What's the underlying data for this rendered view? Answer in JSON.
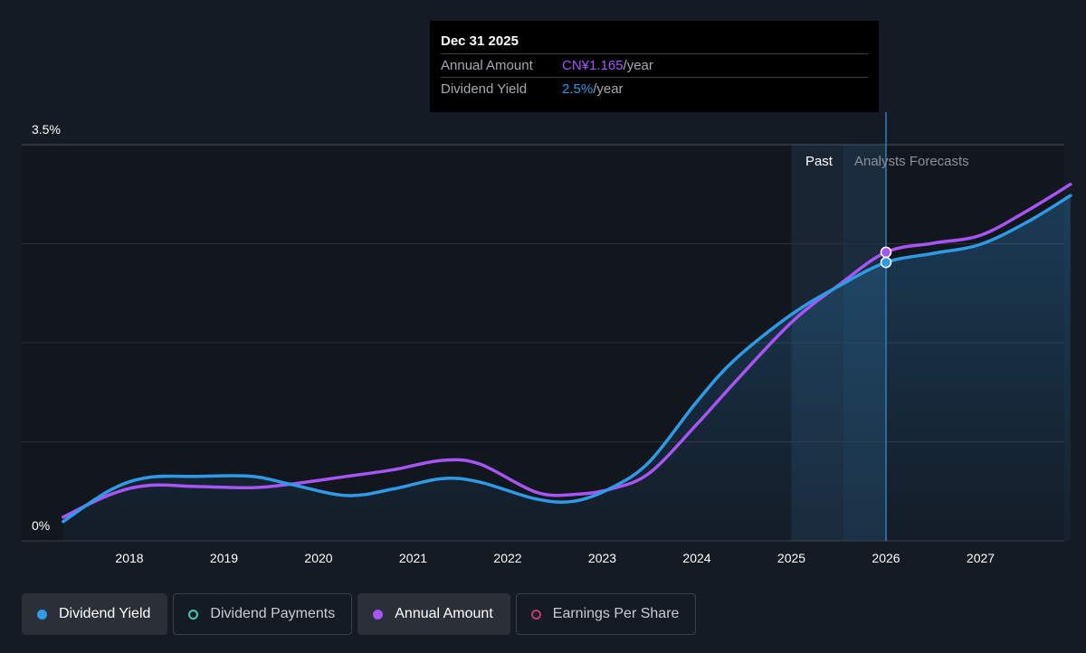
{
  "colors": {
    "dividend_yield": "#2f9ae6",
    "annual_amount": "#a855f7",
    "dividend_payments": "#3ec9b0",
    "earnings_per_share": "#c23a6e"
  },
  "tooltip": {
    "date": "Dec 31 2025",
    "rows": [
      {
        "label": "Annual Amount",
        "value": "CN¥1.165",
        "unit": "/year",
        "color": "#a855f7"
      },
      {
        "label": "Dividend Yield",
        "value": "2.5%",
        "unit": "/year",
        "color": "#2f9ae6"
      }
    ]
  },
  "regions": {
    "past_label": "Past",
    "forecast_label": "Analysts Forecasts"
  },
  "legend": [
    {
      "label": "Dividend Yield",
      "style": "filled",
      "color": "#2f9ae6"
    },
    {
      "label": "Dividend Payments",
      "style": "outline",
      "color": "#3ec9b0"
    },
    {
      "label": "Annual Amount",
      "style": "filled",
      "color": "#a855f7"
    },
    {
      "label": "Earnings Per Share",
      "style": "outline",
      "color": "#c23a6e"
    }
  ],
  "chart_data": {
    "type": "line",
    "title": "",
    "xlabel": "",
    "ylabel": "",
    "y_tick_labels": [
      "3.5%",
      "0%"
    ],
    "ylim": [
      0,
      3.5
    ],
    "xlim": [
      2017.3,
      2027.95
    ],
    "x_ticks": [
      2018,
      2019,
      2020,
      2021,
      2022,
      2023,
      2024,
      2025,
      2026,
      2027
    ],
    "x_tick_labels": [
      "2018",
      "2019",
      "2020",
      "2021",
      "2022",
      "2023",
      "2024",
      "2025",
      "2026",
      "2027"
    ],
    "grid": true,
    "forecast_start": 2025.55,
    "highlight_x": 2026.0,
    "series": [
      {
        "name": "Dividend Yield",
        "color": "#2f9ae6",
        "x": [
          2017.3,
          2017.8,
          2018.2,
          2018.7,
          2019.3,
          2019.7,
          2020.3,
          2020.8,
          2021.3,
          2021.7,
          2022.3,
          2022.7,
          2023.1,
          2023.5,
          2024.0,
          2024.4,
          2025.0,
          2025.5,
          2026.0,
          2026.5,
          2027.0,
          2027.5,
          2027.95
        ],
        "y": [
          0.17,
          0.45,
          0.56,
          0.57,
          0.57,
          0.5,
          0.4,
          0.46,
          0.55,
          0.52,
          0.37,
          0.35,
          0.47,
          0.7,
          1.23,
          1.6,
          2.0,
          2.25,
          2.46,
          2.54,
          2.62,
          2.82,
          3.05
        ]
      },
      {
        "name": "Annual Amount",
        "color": "#a855f7",
        "x": [
          2017.3,
          2017.8,
          2018.2,
          2018.7,
          2019.3,
          2019.7,
          2020.3,
          2020.8,
          2021.3,
          2021.7,
          2022.3,
          2022.7,
          2023.1,
          2023.5,
          2024.0,
          2024.4,
          2025.0,
          2025.5,
          2026.0,
          2026.5,
          2027.0,
          2027.5,
          2027.95
        ],
        "y": [
          0.21,
          0.41,
          0.49,
          0.48,
          0.47,
          0.5,
          0.57,
          0.63,
          0.71,
          0.68,
          0.43,
          0.41,
          0.46,
          0.6,
          1.03,
          1.4,
          1.93,
          2.26,
          2.55,
          2.63,
          2.7,
          2.92,
          3.15
        ]
      }
    ]
  }
}
